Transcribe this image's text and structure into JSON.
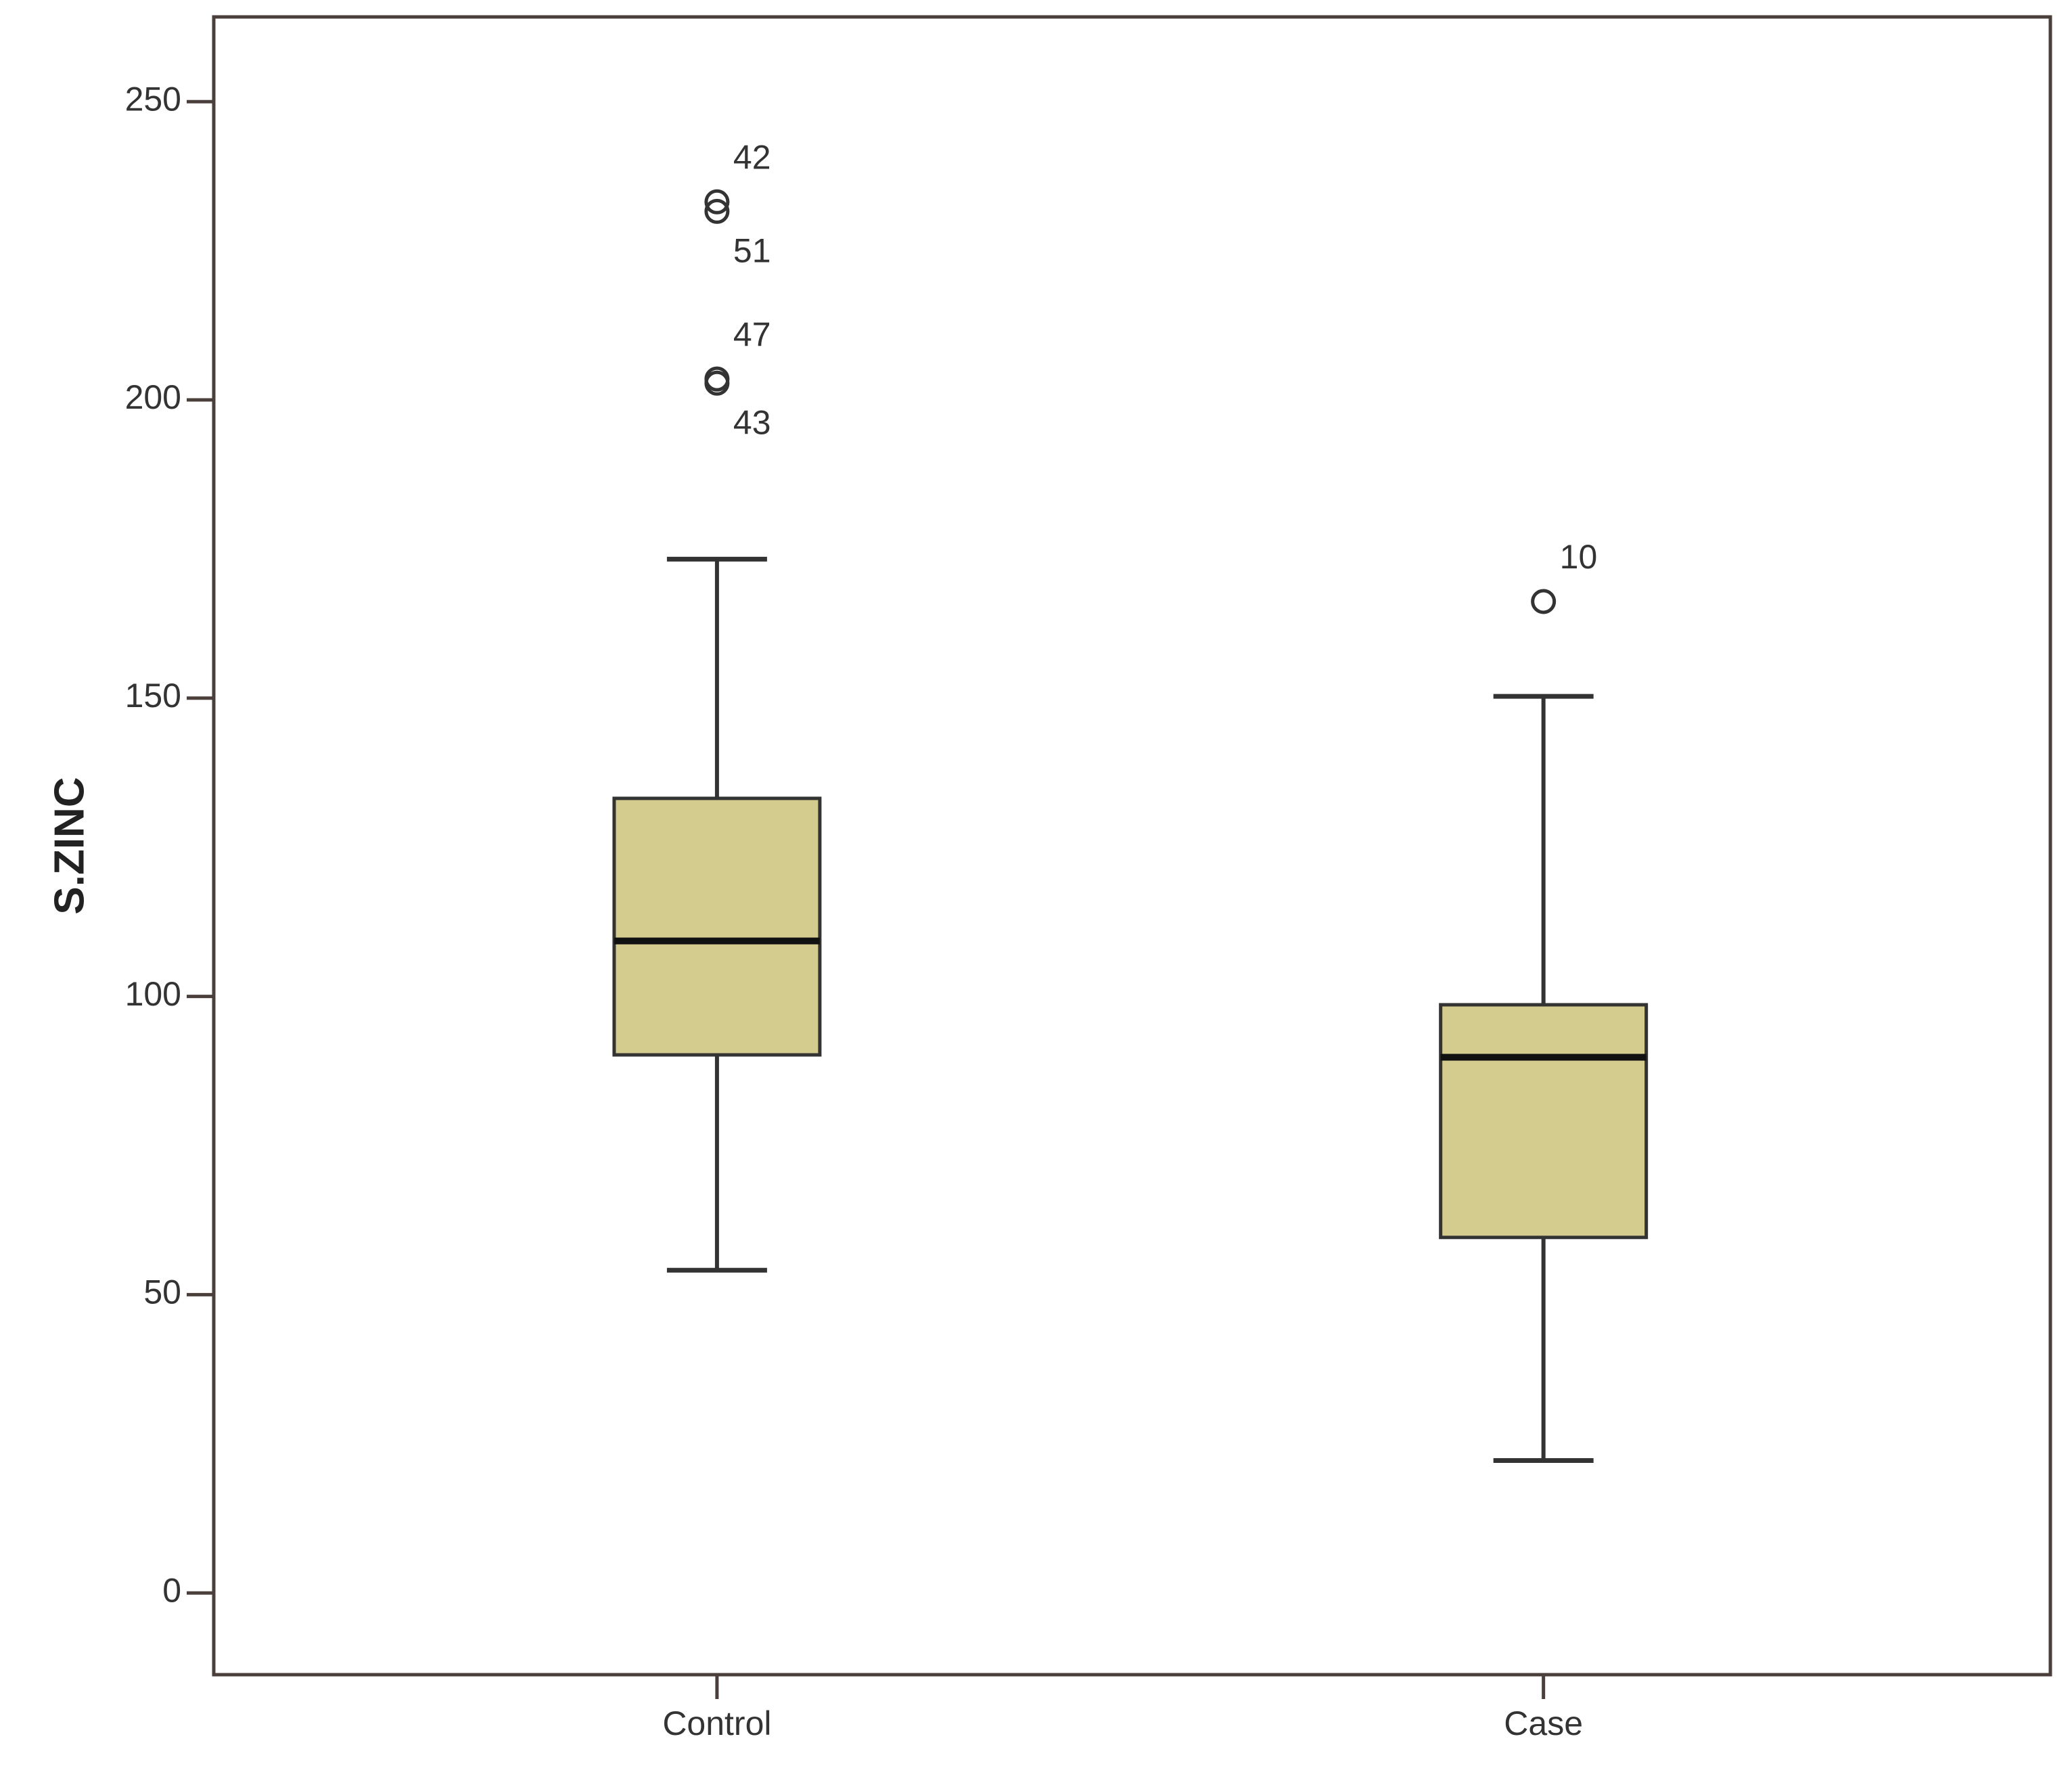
{
  "chart_data": {
    "type": "box",
    "y_label": "S.ZINC",
    "categories": [
      "Control",
      "Case"
    ],
    "color": "#d4cb8e",
    "boxes": [
      {
        "min": 54.1,
        "q1": 90.2,
        "median": 109.3,
        "q3": 133.2,
        "max": 173.3,
        "outliers": [
          233.2,
          231.6,
          203.5,
          202.8
        ],
        "outlier_labels": [
          "42",
          "51",
          "47",
          "43"
        ]
      },
      {
        "min": 22.2,
        "q1": 59.6,
        "median": 89.8,
        "q3": 98.6,
        "max": 150.3,
        "outliers": [
          166.2
        ],
        "outlier_labels": [
          "10"
        ]
      }
    ],
    "ylim": [
      -13.7,
      264.2
    ],
    "yticks": [
      0,
      50,
      100,
      150,
      200,
      250
    ]
  }
}
